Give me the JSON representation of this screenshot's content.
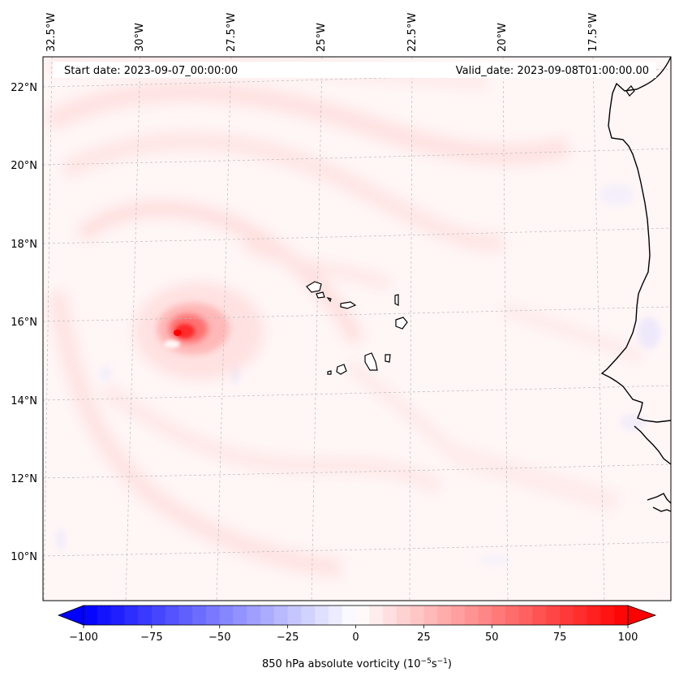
{
  "map": {
    "start_date": "Start date: 2023-09-07_00:00:00",
    "valid_date": "Valid_date: 2023-09-08T01:00:00.00",
    "lon_labels": [
      "32.5°W",
      "30°W",
      "27.5°W",
      "25°W",
      "22.5°W",
      "20°W",
      "17.5°W"
    ],
    "lat_labels": [
      "22°N",
      "20°N",
      "18°N",
      "16°N",
      "14°N",
      "12°N",
      "10°N"
    ],
    "features": {
      "vortex": "vorticity maximum",
      "islands": "Cape Verde islands",
      "coastline": "West African coastline"
    }
  },
  "colorbar": {
    "label_prefix": "850 hPa absolute vorticity (10",
    "label_exp1": "−5",
    "label_mid": "s",
    "label_exp2": "−1",
    "label_suffix": ")",
    "ticks": [
      "−100",
      "−75",
      "−50",
      "−25",
      "0",
      "25",
      "50",
      "75",
      "100"
    ],
    "tick_values": [
      -100,
      -75,
      -50,
      -25,
      0,
      25,
      50,
      75,
      100
    ],
    "min": -100,
    "max": 100,
    "step": 5,
    "colormap": "bwr",
    "low_color": "#0000ff",
    "mid_color": "#ffffff",
    "high_color": "#ff0000"
  }
}
